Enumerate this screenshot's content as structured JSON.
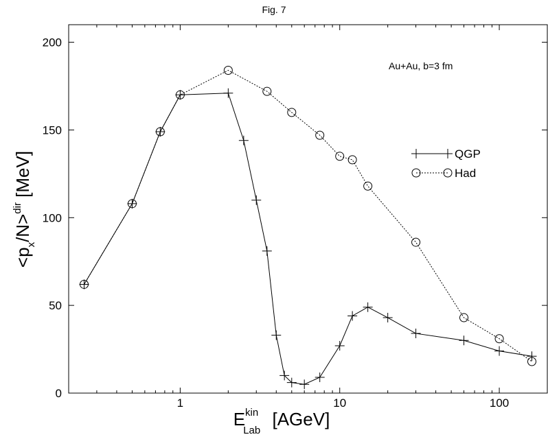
{
  "figure_label": "Fig. 7",
  "chart_data": {
    "type": "line",
    "title": "Fig. 7",
    "annotation": "Au+Au, b=3 fm",
    "xlabel": {
      "main": "E",
      "sup": "kin",
      "sub": "Lab",
      "unit": "[AGeV]"
    },
    "ylabel": {
      "main": "<p",
      "sub": "x",
      "mid": "/N>",
      "sup": "dir",
      "unit": "[MeV]"
    },
    "x_scale": "log",
    "xlim": [
      0.2,
      200
    ],
    "ylim": [
      0,
      210
    ],
    "x_ticks": [
      1,
      10,
      100
    ],
    "x_tick_labels": [
      "1",
      "10",
      "100"
    ],
    "y_ticks": [
      0,
      50,
      100,
      150,
      200
    ],
    "y_tick_labels": [
      "0",
      "50",
      "100",
      "150",
      "200"
    ],
    "grid": false,
    "legend_position": "right-middle",
    "series": [
      {
        "name": "QGP",
        "marker": "plus",
        "line": "solid",
        "x": [
          0.25,
          0.5,
          0.75,
          1,
          2,
          2.5,
          3,
          3.5,
          4,
          4.5,
          5,
          6,
          7.5,
          10,
          12,
          15,
          20,
          30,
          60,
          100,
          160
        ],
        "y": [
          62,
          108,
          149,
          170,
          171,
          144,
          110,
          81,
          33,
          10,
          6,
          5,
          9,
          27,
          44,
          49,
          43,
          34,
          30,
          24,
          21
        ]
      },
      {
        "name": "Had",
        "marker": "circle",
        "line": "dotted",
        "x": [
          0.25,
          0.5,
          0.75,
          1,
          2,
          3.5,
          5,
          7.5,
          10,
          12,
          15,
          30,
          60,
          100,
          160
        ],
        "y": [
          62,
          108,
          149,
          170,
          184,
          172,
          160,
          147,
          135,
          133,
          118,
          86,
          43,
          31,
          18
        ]
      }
    ]
  }
}
